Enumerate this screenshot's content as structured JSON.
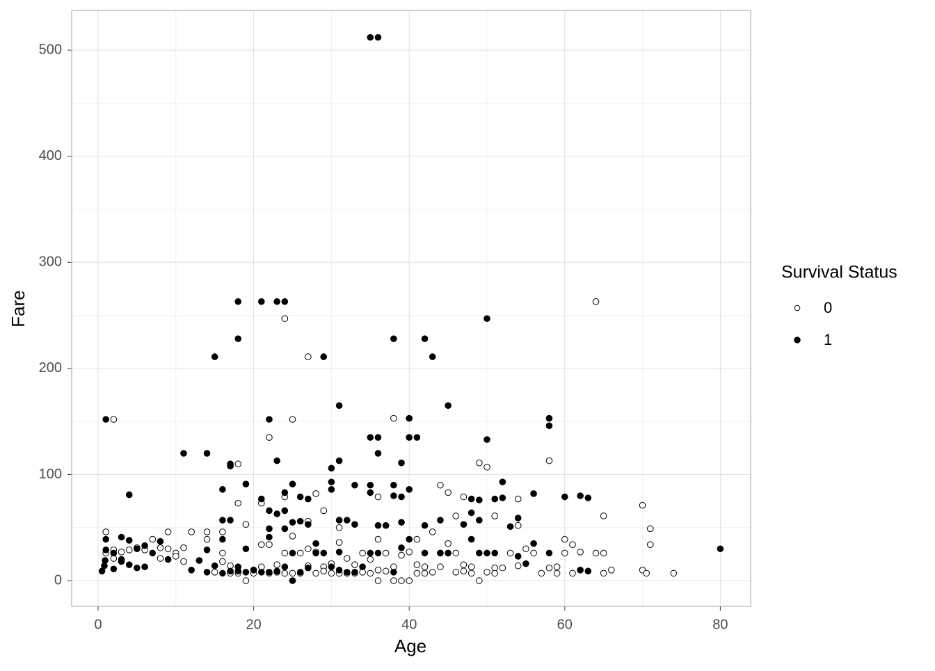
{
  "chart_data": {
    "type": "scatter",
    "x_label": "Age",
    "y_label": "Fare",
    "legend_title": "Survival Status",
    "legend_position": "right",
    "xlim": [
      -3.4,
      83.9
    ],
    "ylim": [
      -24.2,
      537.4
    ],
    "xticks": [
      0,
      20,
      40,
      60,
      80
    ],
    "yticks": [
      0,
      100,
      200,
      300,
      400,
      500
    ],
    "x_minor_grid": [
      10,
      30,
      50,
      70
    ],
    "y_minor_grid": [
      50,
      150,
      250,
      350,
      450
    ],
    "grid": true,
    "series": [
      {
        "name": "0",
        "color": "#000000",
        "filled": false,
        "x": [
          64,
          24,
          27,
          2,
          25,
          38,
          22,
          18,
          58,
          49,
          50,
          18,
          21,
          24,
          28,
          29,
          44,
          45,
          47,
          36,
          70,
          65,
          71,
          71,
          46,
          51,
          19,
          27,
          31,
          1,
          9,
          12,
          14,
          16,
          41,
          36,
          60,
          61,
          62,
          64,
          65,
          61,
          65,
          66,
          70,
          70.5,
          74,
          57,
          58,
          59,
          59,
          60,
          56,
          55,
          53,
          51,
          51,
          50,
          49,
          48,
          47,
          46,
          45,
          44,
          43,
          42,
          41,
          40,
          39,
          38,
          37,
          36,
          35,
          34,
          33,
          32,
          31,
          30,
          29,
          28,
          27,
          26,
          25,
          24,
          23,
          22,
          21,
          20,
          19,
          18,
          17,
          16,
          15,
          14,
          11,
          10,
          9,
          8,
          7,
          6,
          5,
          4,
          3,
          2,
          1,
          2,
          8,
          10,
          11,
          16,
          17,
          20,
          21,
          22,
          23,
          24,
          25,
          26,
          27,
          28,
          29,
          30,
          31,
          32,
          33,
          34,
          35,
          36,
          37,
          38,
          39,
          40,
          41,
          42,
          43,
          44,
          45,
          46,
          47,
          48,
          54,
          54,
          52,
          54
        ],
        "values": [
          263,
          247,
          211,
          152,
          152,
          153,
          135,
          110,
          113,
          111,
          107,
          73,
          73,
          79,
          82,
          66,
          90,
          83,
          79,
          79,
          71,
          61,
          49,
          34,
          61,
          61,
          53,
          56,
          50,
          46,
          46,
          46,
          46,
          46,
          39,
          39,
          39,
          34,
          27,
          26,
          26,
          7,
          7,
          10,
          10,
          7,
          7,
          7,
          12,
          7,
          13,
          26,
          26,
          30,
          26,
          12,
          7,
          8,
          0,
          13,
          9,
          26,
          35,
          13,
          8,
          7,
          7,
          0,
          0,
          0,
          26,
          0,
          7,
          8,
          7,
          7,
          7,
          7,
          13,
          7,
          14,
          7,
          7,
          7,
          8,
          7,
          13,
          7,
          0,
          7,
          14,
          18,
          8,
          39,
          18,
          26,
          30,
          21,
          39,
          29,
          31,
          29,
          27,
          21,
          26,
          29,
          31,
          23,
          31,
          26,
          7,
          10,
          34,
          34,
          15,
          26,
          42,
          26,
          30,
          27,
          9,
          16,
          36,
          21,
          15,
          26,
          20,
          10,
          9,
          13,
          24,
          27,
          15,
          13,
          46,
          26,
          26,
          8,
          15,
          7,
          14,
          52,
          12,
          77
        ]
      },
      {
        "name": "1",
        "color": "#000000",
        "filled": true,
        "x": [
          35,
          36,
          18,
          21,
          23,
          24,
          18,
          38,
          42,
          50,
          15,
          29,
          43,
          1,
          22,
          31,
          45,
          40,
          58,
          58,
          35,
          36,
          41,
          40,
          50,
          11,
          14,
          36,
          17,
          17,
          23,
          31,
          39,
          30,
          4,
          16,
          19,
          25,
          30,
          30,
          33,
          35,
          38,
          40,
          52,
          21,
          24,
          26,
          27,
          35,
          38,
          39,
          48,
          49,
          51,
          52,
          56,
          60,
          62,
          63,
          16,
          17,
          22,
          23,
          24,
          25,
          26,
          27,
          31,
          32,
          33,
          36,
          37,
          39,
          42,
          44,
          47,
          48,
          49,
          53,
          54,
          22,
          24,
          22,
          16,
          14,
          3,
          4,
          1,
          8,
          9,
          5,
          6,
          7,
          2,
          3,
          4,
          0.9,
          0.8,
          1,
          0.5,
          2,
          3,
          5,
          6,
          13,
          12,
          15,
          17,
          18,
          19,
          20,
          21,
          22,
          23,
          24,
          25,
          25,
          26,
          27,
          28,
          29,
          30,
          31,
          32,
          33,
          34,
          35,
          36,
          38,
          40,
          42,
          44,
          45,
          48,
          49,
          50,
          51,
          54,
          55,
          56,
          62,
          63,
          80,
          58,
          18,
          16,
          14,
          39,
          19,
          28,
          31
        ],
        "values": [
          512,
          512,
          263,
          263,
          263,
          263,
          228,
          228,
          228,
          247,
          211,
          211,
          211,
          152,
          152,
          165,
          165,
          153,
          153,
          146,
          135,
          135,
          135,
          135,
          133,
          120,
          120,
          120,
          110,
          108,
          113,
          113,
          111,
          106,
          81,
          86,
          91,
          91,
          93,
          86,
          90,
          90,
          90,
          86,
          93,
          77,
          83,
          79,
          77,
          83,
          80,
          79,
          77,
          76,
          77,
          78,
          82,
          79,
          80,
          78,
          57,
          57,
          66,
          63,
          66,
          55,
          56,
          53,
          57,
          57,
          53,
          52,
          52,
          55,
          52,
          57,
          53,
          64,
          57,
          51,
          59,
          49,
          49,
          41,
          39,
          29,
          41,
          38,
          39,
          37,
          20,
          30,
          33,
          26,
          26,
          20,
          15,
          19,
          14,
          29,
          9,
          11,
          18,
          12,
          13,
          19,
          10,
          14,
          9,
          9,
          8,
          10,
          8,
          8,
          9,
          13,
          0,
          26,
          8,
          12,
          26,
          26,
          13,
          10,
          8,
          8,
          13,
          26,
          26,
          8,
          39,
          26,
          26,
          26,
          39,
          26,
          26,
          26,
          23,
          16,
          35,
          10,
          9,
          30,
          26,
          13,
          7,
          8,
          31,
          30,
          35,
          27
        ]
      }
    ]
  }
}
